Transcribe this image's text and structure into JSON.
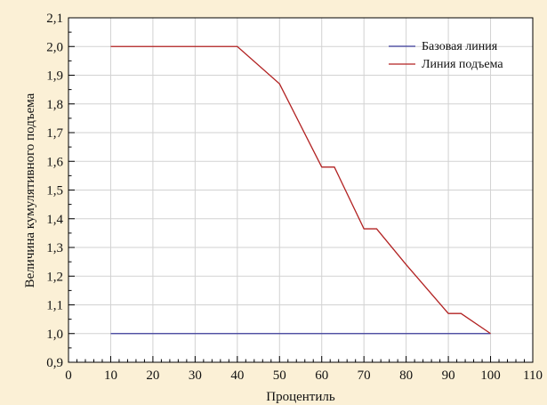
{
  "chart_data": {
    "type": "line",
    "title": "",
    "xlabel": "Процентиль",
    "ylabel": "Величина кумулятивного подъема",
    "xlim": [
      0,
      110
    ],
    "ylim": [
      0.9,
      2.1
    ],
    "xticks": [
      0,
      10,
      20,
      30,
      40,
      50,
      60,
      70,
      80,
      90,
      100,
      110
    ],
    "xtick_labels": [
      "0",
      "10",
      "20",
      "30",
      "40",
      "50",
      "60",
      "70",
      "80",
      "90",
      "100",
      "110"
    ],
    "yticks": [
      0.9,
      1.0,
      1.1,
      1.2,
      1.3,
      1.4,
      1.5,
      1.6,
      1.7,
      1.8,
      1.9,
      2.0,
      2.1
    ],
    "ytick_labels": [
      "0,9",
      "1,0",
      "1,1",
      "1,2",
      "1,3",
      "1,4",
      "1,5",
      "1,6",
      "1,7",
      "1,8",
      "1,9",
      "2,0",
      "2,1"
    ],
    "grid": true,
    "legend_position": "top-right",
    "series": [
      {
        "name": "Базовая линия",
        "color": "#3b3b9a",
        "x": [
          10,
          100
        ],
        "y": [
          1.0,
          1.0
        ]
      },
      {
        "name": "Линия подъема",
        "color": "#b22222",
        "x": [
          10,
          40,
          50,
          60,
          63,
          70,
          73,
          80,
          90,
          93,
          100
        ],
        "y": [
          2.0,
          2.0,
          1.87,
          1.58,
          1.58,
          1.365,
          1.365,
          1.24,
          1.07,
          1.07,
          1.0
        ]
      }
    ]
  }
}
